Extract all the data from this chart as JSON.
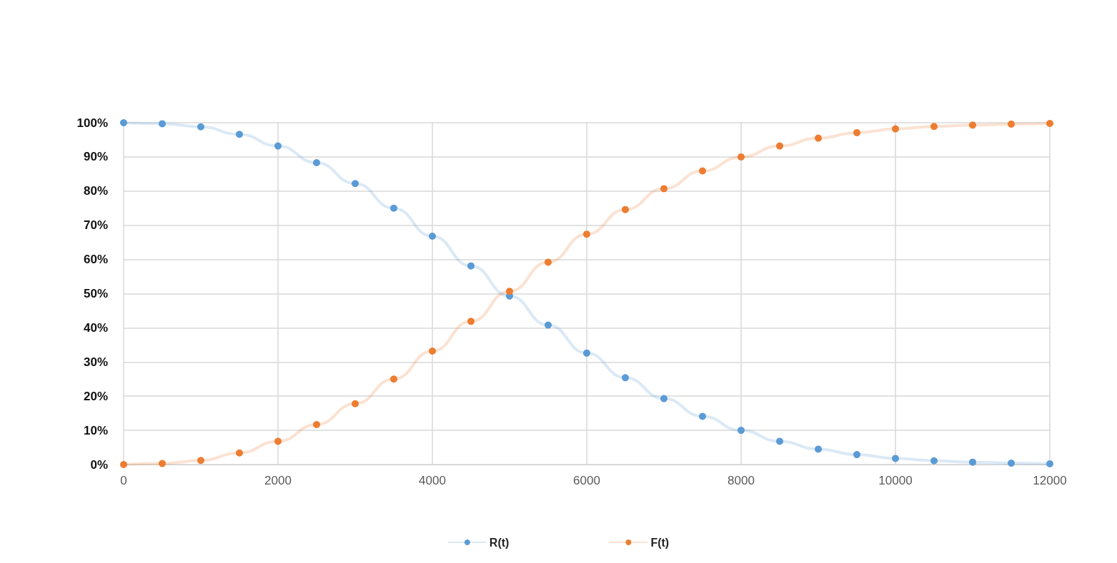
{
  "chart_data": {
    "type": "line",
    "x": [
      0,
      500,
      1000,
      1500,
      2000,
      2500,
      3000,
      3500,
      4000,
      4500,
      5000,
      5500,
      6000,
      6500,
      7000,
      7500,
      8000,
      8500,
      9000,
      9500,
      10000,
      10500,
      11000,
      11500,
      12000
    ],
    "series": [
      {
        "name": "R(t)",
        "color": "#5b9bd5",
        "values": [
          100,
          99.7,
          98.8,
          96.6,
          93.2,
          88.3,
          82.2,
          75,
          66.8,
          58.1,
          49.3,
          40.8,
          32.6,
          25.4,
          19.3,
          14.1,
          10,
          6.8,
          4.5,
          2.9,
          1.8,
          1.1,
          0.7,
          0.4,
          0.2
        ]
      },
      {
        "name": "F(t)",
        "color": "#ed7d31",
        "values": [
          0,
          0.3,
          1.2,
          3.4,
          6.8,
          11.7,
          17.8,
          25,
          33.2,
          41.9,
          50.7,
          59.2,
          67.4,
          74.6,
          80.7,
          85.9,
          90,
          93.2,
          95.5,
          97.1,
          98.2,
          98.9,
          99.3,
          99.6,
          99.8
        ]
      }
    ],
    "xlim": [
      0,
      12000
    ],
    "xticks": [
      0,
      2000,
      4000,
      6000,
      8000,
      10000,
      12000
    ],
    "ylim": [
      0,
      100
    ],
    "yticks": [
      {
        "value": 0,
        "label": "0%"
      },
      {
        "value": 10,
        "label": "10%"
      },
      {
        "value": 20,
        "label": "20%"
      },
      {
        "value": 30,
        "label": "30%"
      },
      {
        "value": 40,
        "label": "40%"
      },
      {
        "value": 50,
        "label": "50%"
      },
      {
        "value": 60,
        "label": "60%"
      },
      {
        "value": 70,
        "label": "70%"
      },
      {
        "value": 80,
        "label": "80%"
      },
      {
        "value": 90,
        "label": "90%"
      },
      {
        "value": 100,
        "label": "100%"
      }
    ],
    "grid": true,
    "legend": "bottom",
    "marker": "circle",
    "line_style": "solid"
  }
}
